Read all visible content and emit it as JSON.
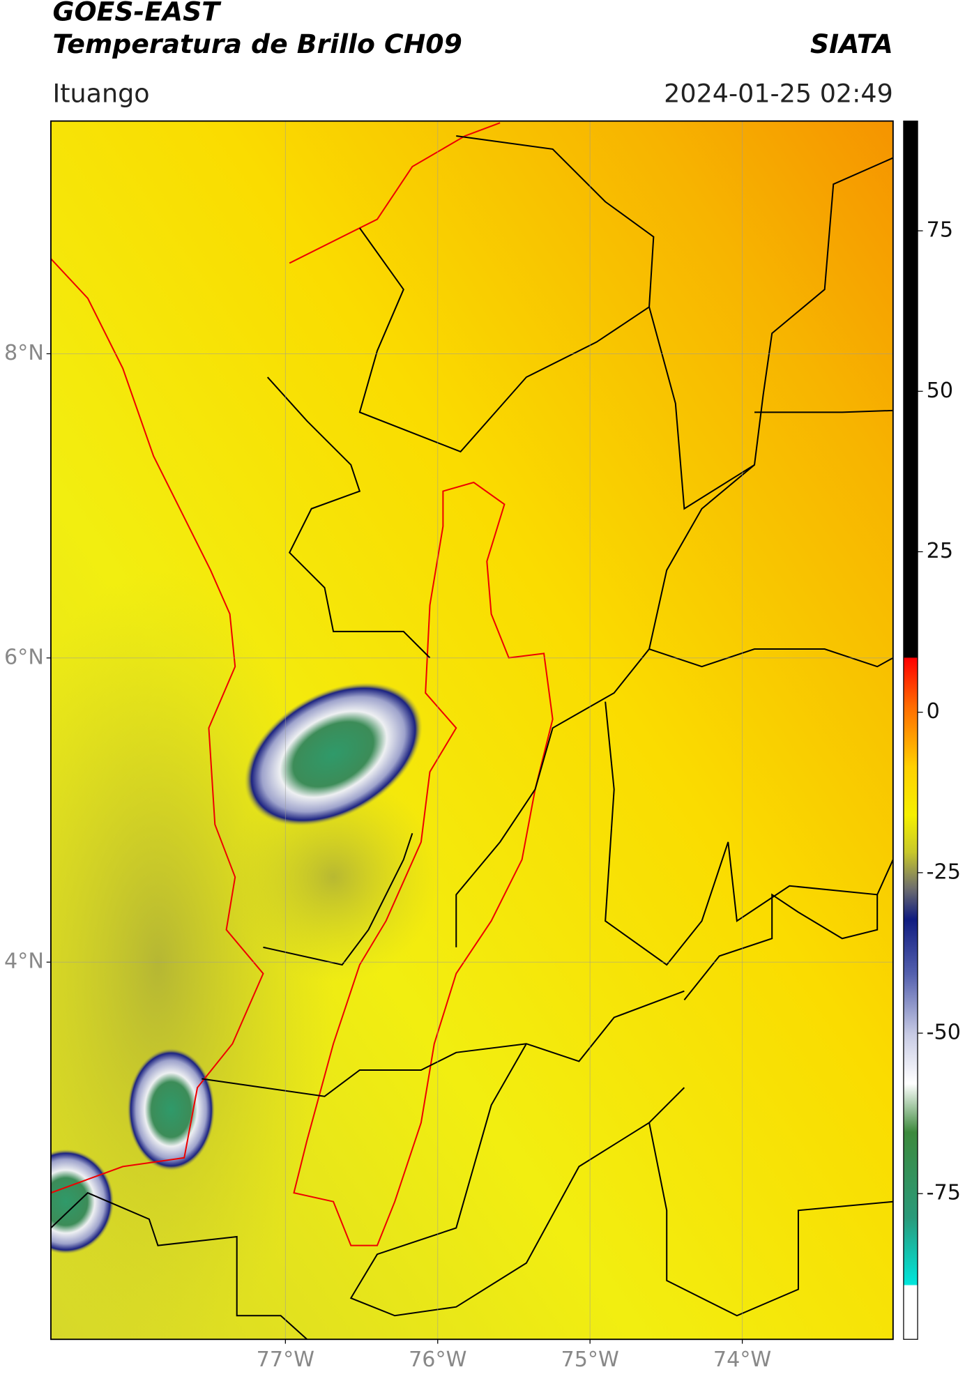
{
  "map": {
    "title": "GOES-EAST",
    "subtitle": "Temperatura de Brillo CH09",
    "source": "SIATA",
    "location": "Ituango",
    "datetime": "2024-01-25 02:49",
    "xlim": [
      -78.54,
      -73.01
    ],
    "ylim": [
      1.52,
      9.53
    ],
    "xticks": [
      {
        "value": -77,
        "label": "77°W"
      },
      {
        "value": -76,
        "label": "76°W"
      },
      {
        "value": -75,
        "label": "75°W"
      },
      {
        "value": -74,
        "label": "74°W"
      }
    ],
    "yticks": [
      {
        "value": 8,
        "label": "8°N"
      },
      {
        "value": 6,
        "label": "6°N"
      },
      {
        "value": 4,
        "label": "4°N"
      }
    ],
    "grid": true,
    "colorbar": {
      "lim": [
        -97.7,
        92.1
      ],
      "ticks": [
        75,
        50,
        25,
        0,
        -25,
        -50,
        -75
      ]
    }
  }
}
